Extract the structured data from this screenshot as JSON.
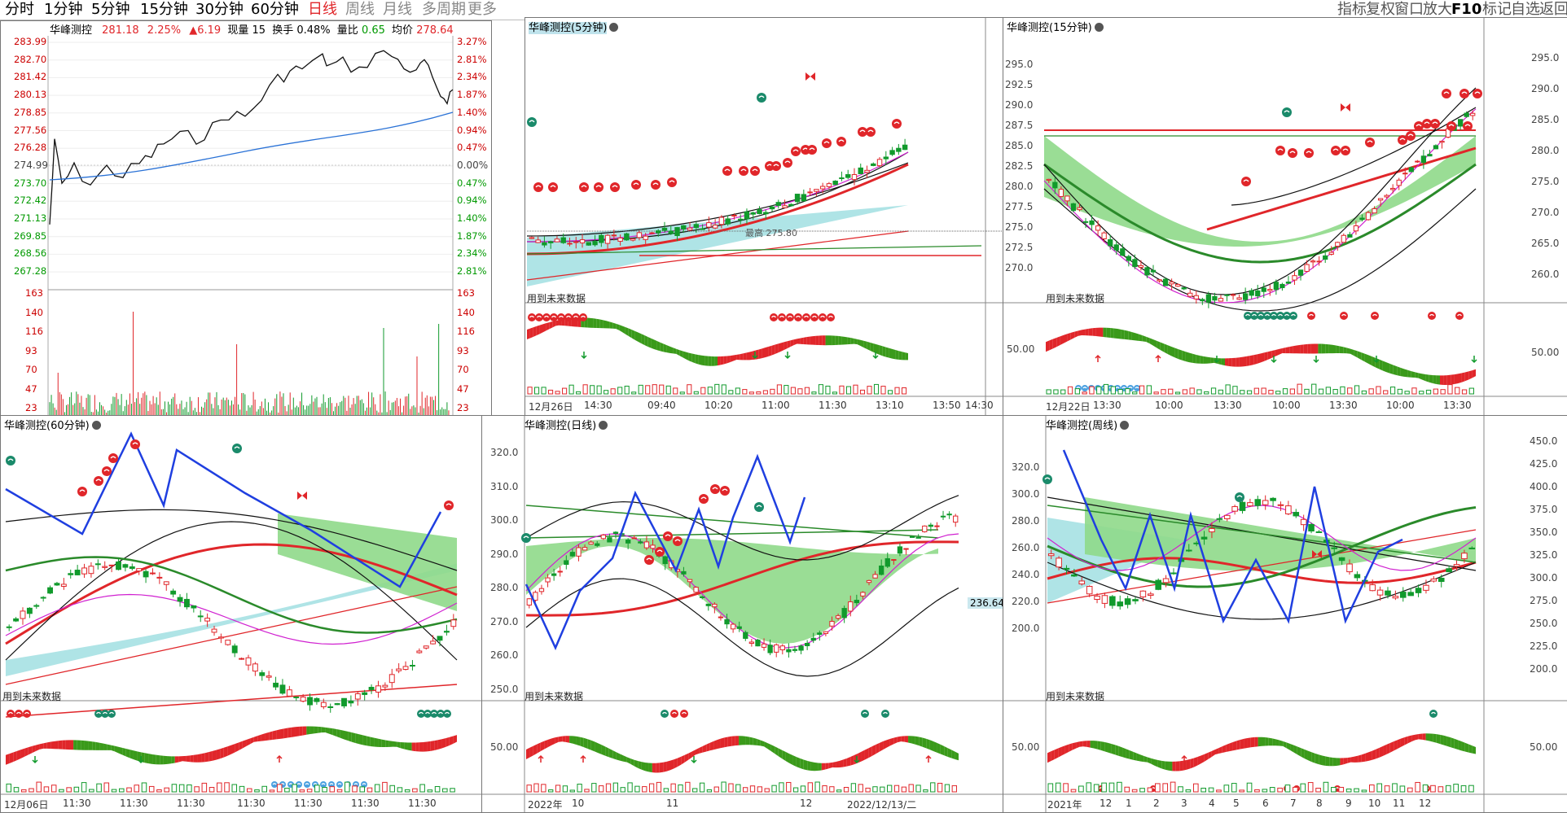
{
  "toolbar": {
    "periods": [
      "分时",
      "1分钟",
      "5分钟",
      "15分钟",
      "30分钟",
      "60分钟",
      "日线",
      "周线",
      "月线",
      "多周期",
      "更多"
    ],
    "active": "日线",
    "right_buttons": [
      "指标",
      "复权",
      "窗口",
      "放大",
      "F10",
      "标记",
      "自选",
      "返回"
    ]
  },
  "intraday": {
    "stock": "华峰测控",
    "price": "281.18",
    "pct": "2.25%",
    "change": "▲6.19",
    "volume_label": "现量",
    "volume": "15",
    "turnover_label": "换手",
    "turnover": "0.48%",
    "ratio_label": "量比",
    "ratio": "0.65",
    "avg_label": "均价",
    "avg": "278.64",
    "price_ticks": [
      "283.99",
      "282.70",
      "281.42",
      "280.13",
      "278.85",
      "277.56",
      "276.28",
      "274.99",
      "273.70",
      "272.42",
      "271.13",
      "269.85",
      "268.56",
      "267.28"
    ],
    "pct_ticks": [
      "3.27%",
      "2.81%",
      "2.34%",
      "1.87%",
      "1.40%",
      "0.94%",
      "0.47%",
      "0.00%",
      "0.47%",
      "0.94%",
      "1.40%",
      "1.87%",
      "2.34%",
      "2.81%"
    ],
    "vol_ticks": [
      "163",
      "140",
      "116",
      "93",
      "70",
      "47",
      "23"
    ]
  },
  "panels": {
    "m5": {
      "title": "华峰测控(5分钟)",
      "future_label": "用到未来数据",
      "price_label": "最高 275.80",
      "x_labels": [
        "12月26日",
        "14:30",
        "09:40",
        "10:20",
        "11:00",
        "11:30",
        "13:10",
        "13:50",
        "14:30"
      ]
    },
    "m15": {
      "title": "华峰测控(15分钟)",
      "future_label": "用到未来数据",
      "y_ticks": [
        "295.0",
        "292.5",
        "290.0",
        "287.5",
        "285.0",
        "282.5",
        "280.0",
        "277.5",
        "275.0",
        "272.5",
        "270.0"
      ],
      "right_ticks": [
        "295.0",
        "290.0",
        "285.0",
        "280.0",
        "275.0",
        "270.0",
        "265.0",
        "260.0"
      ],
      "osc_tick": "50.00",
      "x_labels": [
        "12月22日",
        "13:30",
        "10:00",
        "13:30",
        "10:00",
        "13:30",
        "10:00",
        "13:30"
      ]
    },
    "m60": {
      "title": "华峰测控(60分钟)",
      "future_label": "用到未来数据",
      "x_labels": [
        "12月06日",
        "11:30",
        "11:30",
        "11:30",
        "11:30",
        "11:30",
        "11:30",
        "11:30"
      ]
    },
    "day": {
      "title": "华峰测控(日线)",
      "future_label": "用到未来数据",
      "y_ticks": [
        "320.0",
        "310.0",
        "300.0",
        "290.0",
        "280.0",
        "270.0",
        "260.0",
        "250.0"
      ],
      "osc_tick": "50.00",
      "price_box": "236.64",
      "x_labels": [
        "2022年",
        "10",
        "11",
        "12",
        "2022/12/13/二"
      ]
    },
    "week": {
      "title": "华峰测控(周线)",
      "future_label": "用到未来数据",
      "y_ticks": [
        "320.0",
        "300.0",
        "280.0",
        "260.0",
        "240.0",
        "220.0",
        "200.0"
      ],
      "right_ticks": [
        "450.0",
        "425.0",
        "400.0",
        "375.0",
        "350.0",
        "325.0",
        "300.0",
        "275.0",
        "250.0",
        "225.0",
        "200.0"
      ],
      "osc_tick": "50.00",
      "x_labels": [
        "2021年",
        "12",
        "1",
        "2",
        "3",
        "4",
        "5",
        "6",
        "7",
        "8",
        "9",
        "10",
        "11",
        "12"
      ]
    }
  },
  "colors": {
    "up": "#e0262a",
    "down": "#119a2c",
    "cyan": "#a6e1e3",
    "green_band": "#8fd98a",
    "blue_zig": "#1f3fe0",
    "avg_line": "#2a72d6"
  }
}
